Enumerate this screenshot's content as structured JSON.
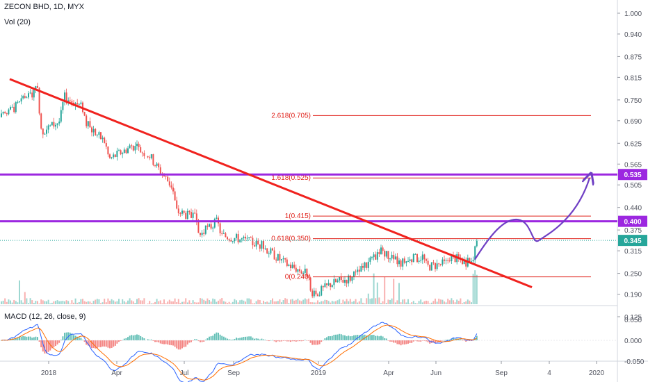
{
  "header": {
    "symbol_line": "ZECON BHD, 1D, MYX",
    "volume_label": "Vol (20)",
    "macd_label": "MACD (12, 26, close, 9)"
  },
  "colors": {
    "up": "#26a69a",
    "down": "#ef5350",
    "trendline": "#f0221e",
    "purple_level": "#9c27e0",
    "fib_line": "#e0211a",
    "forecast_arrow": "#6f3fc4",
    "macd_line": "#2962ff",
    "signal_line": "#ff6d00",
    "axis_text": "#50535e"
  },
  "chart_data": [
    {
      "type": "candlestick",
      "title": "ZECON BHD, 1D, MYX",
      "x_ticks": [
        "2018",
        "Apr",
        "Jul",
        "Sep",
        "2019",
        "Apr",
        "Jun",
        "Sep",
        "4",
        "2020"
      ],
      "y_ticks": [
        "1.000",
        "0.940",
        "0.875",
        "0.815",
        "0.750",
        "0.690",
        "0.625",
        "0.565",
        "0.505",
        "0.440",
        "0.375",
        "0.315",
        "0.250",
        "0.190",
        "0.125"
      ],
      "ylim": [
        0.1,
        1.02
      ],
      "price_tags": [
        {
          "label": "0.535",
          "value": 0.535,
          "color": "#9c27e0"
        },
        {
          "label": "0.400",
          "value": 0.4,
          "color": "#9c27e0"
        },
        {
          "label": "0.345",
          "value": 0.345,
          "color": "#26a69a"
        }
      ],
      "fibonacci": [
        {
          "label": "2.618(0.705)",
          "value": 0.705
        },
        {
          "label": "1.618(0.525)",
          "value": 0.525
        },
        {
          "label": "1(0.415)",
          "value": 0.415
        },
        {
          "label": "0.618(0.350)",
          "value": 0.35
        },
        {
          "label": "0(0.240)",
          "value": 0.24
        }
      ],
      "horizontal_levels": [
        0.535,
        0.4
      ],
      "trendline": {
        "from": [
          "Nov 2017",
          0.81
        ],
        "to": [
          "Oct 2019",
          0.21
        ]
      },
      "price_path": [
        [
          "Nov 2017",
          0.7
        ],
        [
          "Dec 2017",
          0.78
        ],
        [
          "Dec 2017",
          0.66
        ],
        [
          "Jan 2018",
          0.69
        ],
        [
          "Jan 2018",
          0.76
        ],
        [
          "Feb 2018",
          0.73
        ],
        [
          "Feb 2018",
          0.68
        ],
        [
          "Mar 2018",
          0.63
        ],
        [
          "Mar 2018",
          0.58
        ],
        [
          "Apr 2018",
          0.61
        ],
        [
          "Apr 2018",
          0.62
        ],
        [
          "May 2018",
          0.59
        ],
        [
          "May 2018",
          0.57
        ],
        [
          "Jun 2018",
          0.5
        ],
        [
          "Jun 2018",
          0.43
        ],
        [
          "Jul 2018",
          0.41
        ],
        [
          "Jul 2018",
          0.36
        ],
        [
          "Aug 2018",
          0.4
        ],
        [
          "Aug 2018",
          0.36
        ],
        [
          "Sep 2018",
          0.35
        ],
        [
          "Oct 2018",
          0.33
        ],
        [
          "Nov 2018",
          0.28
        ],
        [
          "Dec 2018",
          0.25
        ],
        [
          "Dec 2018",
          0.18
        ],
        [
          "Jan 2019",
          0.22
        ],
        [
          "Feb 2019",
          0.24
        ],
        [
          "Mar 2019",
          0.3
        ],
        [
          "Mar 2019",
          0.32
        ],
        [
          "Apr 2019",
          0.28
        ],
        [
          "May 2019",
          0.3
        ],
        [
          "May 2019",
          0.27
        ],
        [
          "Jun 2019",
          0.28
        ],
        [
          "Jun 2019",
          0.3
        ],
        [
          "Jul 2019",
          0.28
        ],
        [
          "Jul 2019",
          0.3
        ],
        [
          "Aug 2019",
          0.345
        ]
      ],
      "forecast_path": [
        [
          "Aug 2019",
          0.3
        ],
        [
          "Sep 2019",
          0.4
        ],
        [
          "Oct 2019",
          0.345
        ],
        [
          "Nov 2019",
          0.4
        ],
        [
          "Dec 2019",
          0.52
        ]
      ]
    },
    {
      "type": "bar",
      "title": "Vol (20)",
      "note": "volume bars along the bottom of the price pane, spike near Mar 2019 and at the end"
    },
    {
      "type": "line",
      "title": "MACD (12, 26, close, 9)",
      "y_ticks": [
        "0.050",
        "0.000",
        "-0.050"
      ],
      "ylim": [
        -0.06,
        0.06
      ],
      "x_ticks": [
        "2018",
        "Apr",
        "Jul",
        "Sep",
        "2019",
        "Apr",
        "Jun",
        "Sep",
        "4",
        "2020"
      ]
    }
  ]
}
